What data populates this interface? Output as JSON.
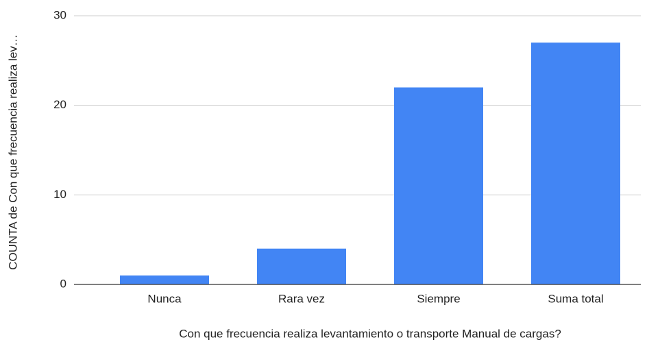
{
  "chart_data": {
    "type": "bar",
    "x_label": "Con que frecuencia realiza levantamiento o transporte Manual de cargas?",
    "y_label": "COUNTA de  Con que frecuencia realiza lev…",
    "categories": [
      "Nunca",
      "Rara vez",
      "Siempre",
      "Suma total"
    ],
    "values": [
      1,
      4,
      22,
      27
    ],
    "color": "#4285f4",
    "ylim": [
      0,
      30
    ],
    "yticks": [
      0,
      10,
      20,
      30
    ],
    "grid": true
  }
}
